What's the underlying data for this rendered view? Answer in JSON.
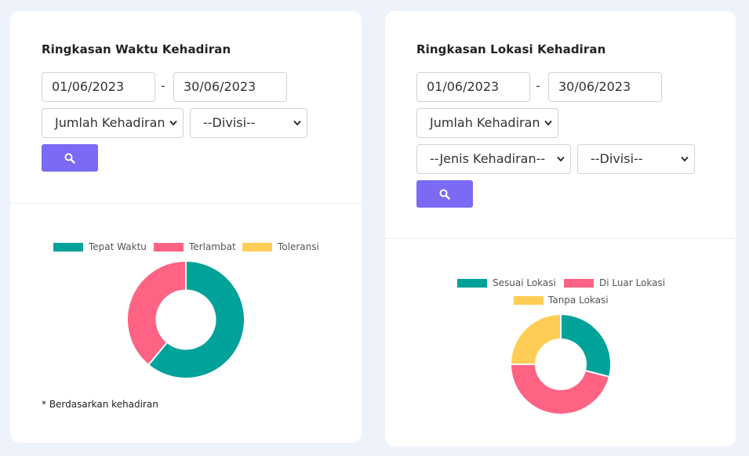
{
  "colors": {
    "accent": "#7a6af4",
    "teal": "#00a29a",
    "pink": "#ff6384",
    "yellow": "#ffcd56"
  },
  "left_card": {
    "title": "Ringkasan Waktu Kehadiran",
    "date_from": "01/06/2023",
    "separator": "-",
    "date_to": "30/06/2023",
    "metric_select": "Jumlah Kehadiran",
    "division_select": "--Divisi--",
    "search_icon": "search-icon",
    "note": "* Berdasarkan kehadiran"
  },
  "right_card": {
    "title": "Ringkasan Lokasi Kehadiran",
    "date_from": "01/06/2023",
    "separator": "-",
    "date_to": "30/06/2023",
    "metric_select": "Jumlah Kehadiran",
    "type_select": "--Jenis Kehadiran--",
    "division_select": "--Divisi--",
    "search_icon": "search-icon"
  },
  "chart_data": [
    {
      "type": "pie",
      "title": "",
      "donut": true,
      "legend": "top",
      "categories": [
        "Tepat Waktu",
        "Terlambat",
        "Toleransi"
      ],
      "values": [
        61,
        39,
        0
      ],
      "colors": [
        "#00a29a",
        "#ff6384",
        "#ffcd56"
      ]
    },
    {
      "type": "pie",
      "title": "",
      "donut": true,
      "legend": "top",
      "categories": [
        "Sesuai Lokasi",
        "Di Luar Lokasi",
        "Tanpa Lokasi"
      ],
      "values": [
        29,
        46,
        25
      ],
      "colors": [
        "#00a29a",
        "#ff6384",
        "#ffcd56"
      ]
    }
  ]
}
